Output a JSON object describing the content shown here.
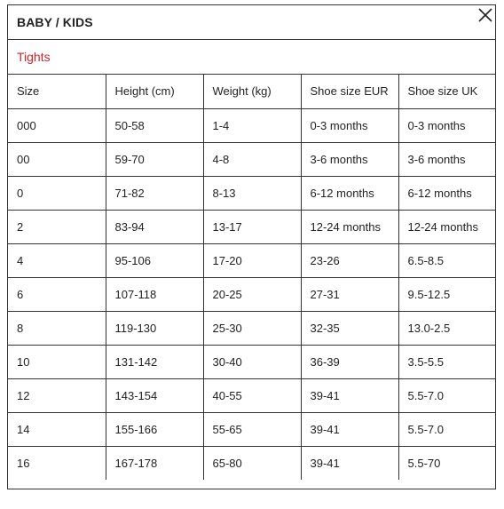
{
  "header": {
    "title": "BABY / KIDS",
    "subtitle": "Tights"
  },
  "close_icon": "close-icon",
  "table": {
    "columns": [
      "Size",
      "Height (cm)",
      "Weight (kg)",
      "Shoe size EUR",
      "Shoe size UK"
    ],
    "rows": [
      [
        "000",
        "50-58",
        "1-4",
        "0-3 months",
        "0-3 months"
      ],
      [
        "00",
        "59-70",
        "4-8",
        "3-6 months",
        "3-6 months"
      ],
      [
        "0",
        "71-82",
        "8-13",
        "6-12 months",
        "6-12 months"
      ],
      [
        "2",
        "83-94",
        "13-17",
        "12-24 months",
        "12-24 months"
      ],
      [
        "4",
        "95-106",
        "17-20",
        "23-26",
        "6.5-8.5"
      ],
      [
        "6",
        "107-118",
        "20-25",
        "27-31",
        "9.5-12.5"
      ],
      [
        "8",
        "119-130",
        "25-30",
        "32-35",
        "13.0-2.5"
      ],
      [
        "10",
        "131-142",
        "30-40",
        "36-39",
        "3.5-5.5"
      ],
      [
        "12",
        "143-154",
        "40-55",
        "39-41",
        "5.5-7.0"
      ],
      [
        "14",
        "155-166",
        "55-65",
        "39-41",
        "5.5-7.0"
      ],
      [
        "16",
        "167-178",
        "65-80",
        "39-41",
        "5.5-70"
      ]
    ]
  },
  "colors": {
    "subtitle": "#d0242b",
    "border": "#333333",
    "text": "#222222"
  }
}
